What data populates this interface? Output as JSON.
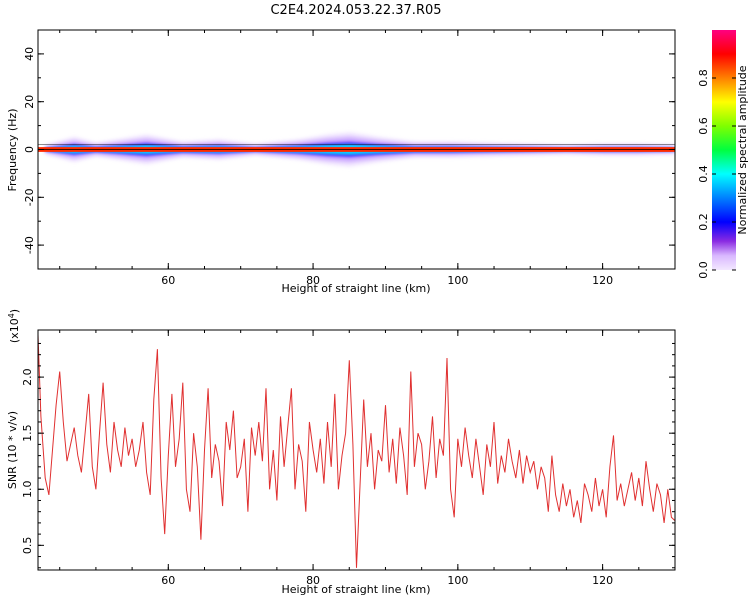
{
  "title": "C2E4.2024.053.22.37.R05",
  "colors": {
    "snr_line": "#e03030",
    "axis": "#000000",
    "background": "#ffffff"
  },
  "chart_data": [
    {
      "type": "heatmap",
      "xlabel": "Height of straight line (km)",
      "ylabel": "Frequency (Hz)",
      "xlim": [
        42,
        130
      ],
      "ylim": [
        -50,
        50
      ],
      "x_ticks": [
        60,
        80,
        100,
        120
      ],
      "y_ticks": [
        -40,
        -20,
        0,
        20,
        40
      ],
      "colorbar": {
        "label": "Normalized spectral amplitude",
        "range": [
          0,
          1
        ],
        "ticks": [
          0.0,
          0.2,
          0.4,
          0.6,
          0.8
        ],
        "tick_labels": [
          "0.0",
          "0.2",
          "0.4",
          "0.6",
          "0.8"
        ]
      },
      "band": {
        "center_hz": 0,
        "core_halfwidth_hz": 1,
        "spread_halfwidth_hz": [
          1.5,
          5,
          2.5,
          4,
          6,
          3,
          4,
          2,
          4,
          6,
          7,
          5,
          3,
          3,
          2.5,
          2,
          1.5,
          2,
          2,
          1.5
        ],
        "spread_x": [
          43,
          47,
          50,
          53,
          57,
          62,
          67,
          72,
          78,
          82,
          85,
          89,
          94,
          99,
          104,
          110,
          115,
          120,
          125,
          130
        ]
      }
    },
    {
      "type": "line",
      "xlabel": "Height of straight line (km)",
      "ylabel": "SNR (10 * v/v)",
      "y_multiplier_label": "(x10",
      "y_multiplier_exp": "4",
      "y_multiplier_close": ")",
      "xlim": [
        42,
        130
      ],
      "ylim": [
        0.28,
        2.42
      ],
      "x_ticks": [
        60,
        80,
        100,
        120
      ],
      "y_ticks": [
        0.5,
        1.0,
        1.5,
        2.0
      ],
      "y_tick_labels": [
        "0.5",
        "1.0",
        "1.5",
        "2.0"
      ],
      "series": [
        {
          "x": [
            42,
            42.4,
            43,
            43.5,
            44,
            44.5,
            45,
            45.5,
            46,
            46.5,
            47,
            47.5,
            48,
            48.5,
            49,
            49.5,
            50,
            50.5,
            51,
            51.5,
            52,
            52.5,
            53,
            53.5,
            54,
            54.5,
            55,
            55.5,
            56,
            56.5,
            57,
            57.5,
            58,
            58.5,
            59,
            59.5,
            60,
            60.5,
            61,
            61.5,
            62,
            62.5,
            63,
            63.5,
            64,
            64.5,
            65,
            65.5,
            66,
            66.5,
            67,
            67.5,
            68,
            68.5,
            69,
            69.5,
            70,
            70.5,
            71,
            71.5,
            72,
            72.5,
            73,
            73.5,
            74,
            74.5,
            75,
            75.5,
            76,
            76.5,
            77,
            77.5,
            78,
            78.5,
            79,
            79.5,
            80,
            80.5,
            81,
            81.5,
            82,
            82.5,
            83,
            83.5,
            84,
            84.5,
            85,
            85.5,
            86,
            86.5,
            87,
            87.5,
            88,
            88.5,
            89,
            89.5,
            90,
            90.5,
            91,
            91.5,
            92,
            92.5,
            93,
            93.5,
            94,
            94.5,
            95,
            95.5,
            96,
            96.5,
            97,
            97.5,
            98,
            98.5,
            99,
            99.5,
            100,
            100.5,
            101,
            101.5,
            102,
            102.5,
            103,
            103.5,
            104,
            104.5,
            105,
            105.5,
            106,
            106.5,
            107,
            107.5,
            108,
            108.5,
            109,
            109.5,
            110,
            110.5,
            111,
            111.5,
            112,
            112.5,
            113,
            113.5,
            114,
            114.5,
            115,
            115.5,
            116,
            116.5,
            117,
            117.5,
            118,
            118.5,
            119,
            119.5,
            120,
            120.5,
            121,
            121.5,
            122,
            122.5,
            123,
            123.5,
            124,
            124.5,
            125,
            125.5,
            126,
            126.5,
            127,
            127.5,
            128,
            128.5,
            129,
            129.5,
            130
          ],
          "y": [
            2.38,
            1.65,
            1.1,
            0.95,
            1.35,
            1.75,
            2.05,
            1.6,
            1.25,
            1.4,
            1.55,
            1.3,
            1.15,
            1.5,
            1.85,
            1.2,
            1.0,
            1.5,
            1.95,
            1.4,
            1.15,
            1.6,
            1.35,
            1.2,
            1.55,
            1.3,
            1.45,
            1.2,
            1.35,
            1.6,
            1.15,
            0.95,
            1.8,
            2.25,
            1.1,
            0.6,
            1.3,
            1.85,
            1.2,
            1.45,
            1.95,
            1.0,
            0.8,
            1.5,
            1.2,
            0.55,
            1.35,
            1.9,
            1.1,
            1.4,
            1.25,
            0.85,
            1.6,
            1.35,
            1.7,
            1.1,
            1.2,
            1.45,
            0.8,
            1.55,
            1.3,
            1.6,
            1.25,
            1.9,
            1.0,
            1.35,
            0.9,
            1.65,
            1.2,
            1.55,
            1.9,
            1.0,
            1.4,
            1.25,
            0.8,
            1.6,
            1.35,
            1.15,
            1.45,
            1.05,
            1.6,
            1.2,
            1.85,
            1.0,
            1.3,
            1.5,
            2.15,
            1.4,
            0.3,
            1.05,
            1.8,
            1.2,
            1.5,
            1.0,
            1.35,
            1.25,
            1.75,
            1.15,
            1.45,
            1.05,
            1.55,
            1.3,
            0.95,
            2.05,
            1.2,
            1.5,
            1.4,
            1.0,
            1.25,
            1.65,
            1.1,
            1.45,
            1.3,
            2.17,
            1.0,
            0.75,
            1.45,
            1.2,
            1.55,
            1.3,
            1.1,
            1.45,
            1.2,
            0.95,
            1.4,
            1.2,
            1.6,
            1.05,
            1.3,
            1.15,
            1.45,
            1.25,
            1.1,
            1.35,
            1.05,
            1.3,
            1.15,
            1.25,
            1.0,
            1.2,
            1.1,
            0.8,
            1.3,
            0.95,
            0.8,
            1.05,
            0.85,
            1.0,
            0.75,
            0.9,
            0.7,
            1.05,
            0.95,
            0.8,
            1.1,
            0.85,
            1.0,
            0.75,
            1.2,
            1.48,
            0.9,
            1.05,
            0.85,
            1.0,
            1.15,
            0.9,
            1.1,
            0.85,
            1.25,
            1.0,
            0.8,
            1.05,
            0.95,
            0.7,
            1.0,
            0.75,
            0.72
          ]
        }
      ]
    }
  ]
}
